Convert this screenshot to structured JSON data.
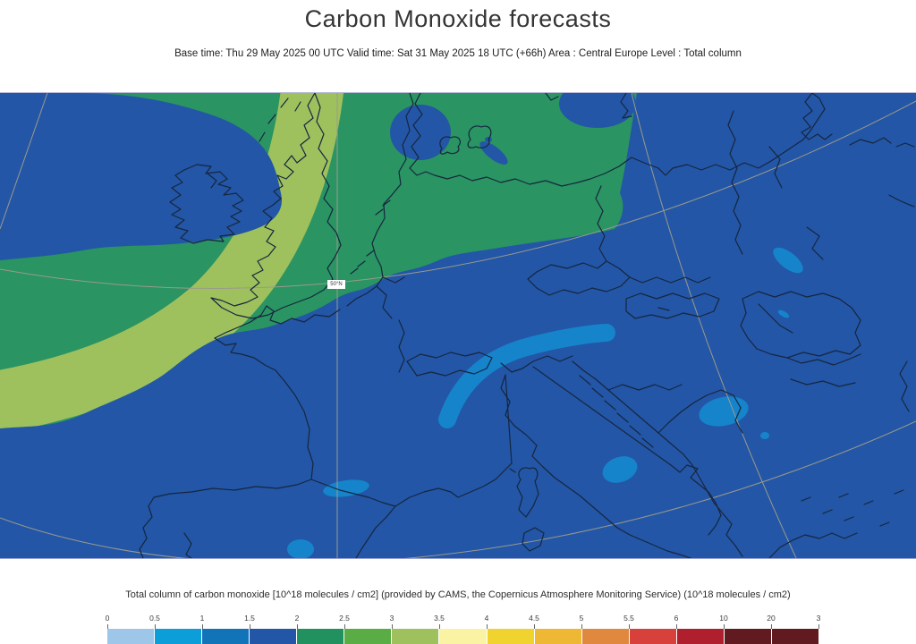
{
  "header": {
    "title": "Carbon Monoxide forecasts",
    "subtitle": "Base time: Thu 29 May 2025 00 UTC Valid time: Sat 31 May 2025 18 UTC (+66h) Area : Central Europe Level : Total column"
  },
  "map": {
    "grid_label": "50°N",
    "colors": {
      "background": "#2356a6",
      "shade_2_to_2_5": "#2a9462",
      "shade_3_to_3_5": "#9ec15e",
      "shade_1_to_1_5": "#1584cb",
      "coastline": "#16263f",
      "graticule": "#9a9a8c"
    }
  },
  "legend": {
    "caption": "Total column of carbon monoxide [10^18 molecules / cm2] (provided by CAMS, the Copernicus Atmosphere Monitoring Service) (10^18 molecules / cm2)",
    "scale": {
      "tick_labels": [
        "0",
        "0.5",
        "1",
        "1.5",
        "2",
        "2.5",
        "3",
        "3.5",
        "4",
        "4.5",
        "5",
        "5.5",
        "6",
        "10",
        "20",
        "3"
      ],
      "segment_colors": [
        "#9dc6e8",
        "#0c9ed9",
        "#1173b8",
        "#2356a7",
        "#21915f",
        "#5aac44",
        "#9ec15e",
        "#faf3a4",
        "#f0d32f",
        "#eeb734",
        "#e0883e",
        "#d8403c",
        "#b01f2e",
        "#611a20",
        "#611a20"
      ]
    }
  }
}
